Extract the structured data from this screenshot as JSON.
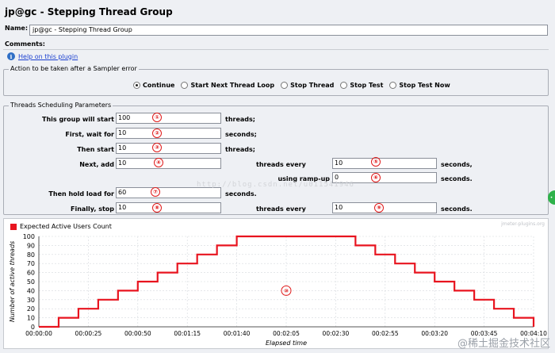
{
  "window": {
    "title": "jp@gc - Stepping Thread Group"
  },
  "name_field": {
    "label": "Name:",
    "value": "jp@gc - Stepping Thread Group"
  },
  "comments": {
    "label": "Comments:"
  },
  "help": {
    "label": "Help on this plugin",
    "icon": "info-icon"
  },
  "sampler_error": {
    "title": "Action to be taken after a Sampler error",
    "options": [
      "Continue",
      "Start Next Thread Loop",
      "Stop Thread",
      "Stop Test",
      "Stop Test Now"
    ],
    "selected": "Continue"
  },
  "schedule": {
    "title": "Threads Scheduling Parameters",
    "this_group_will_start": {
      "label": "This group will start",
      "value": "100",
      "unit": "threads;",
      "badge": "①"
    },
    "first_wait_for": {
      "label": "First, wait for",
      "value": "10",
      "unit": "seconds;",
      "badge": "②"
    },
    "then_start": {
      "label": "Then start",
      "value": "10",
      "unit": "threads;",
      "badge": "③"
    },
    "next_add": {
      "label": "Next, add",
      "value": "10",
      "badge": "④"
    },
    "threads_every_1": {
      "label": "threads every",
      "value": "10",
      "unit": "seconds,",
      "badge": "⑤"
    },
    "using_rampup": {
      "label": "using ramp-up",
      "value": "0",
      "unit": "seconds.",
      "badge": "⑥"
    },
    "hold_load": {
      "label": "Then hold load for",
      "value": "60",
      "unit": "seconds.",
      "badge": "⑦"
    },
    "finally_stop": {
      "label": "Finally, stop",
      "value": "10",
      "badge": "⑧"
    },
    "threads_every_2": {
      "label": "threads every",
      "value": "10",
      "unit": "seconds.",
      "badge": "⑨"
    }
  },
  "chart_data": {
    "type": "line",
    "legend": "Expected Active Users Count",
    "ylabel": "Number of active threads",
    "xlabel": "Elapsed time",
    "ylim": [
      0,
      100
    ],
    "yticks": [
      0,
      10,
      20,
      30,
      40,
      50,
      60,
      70,
      80,
      90,
      100
    ],
    "xticks": [
      "00:00:00",
      "00:00:25",
      "00:00:50",
      "00:01:15",
      "00:01:40",
      "00:02:05",
      "00:02:30",
      "00:02:55",
      "00:03:20",
      "00:03:45",
      "00:04:10"
    ],
    "xlim_seconds": [
      0,
      250
    ],
    "color": "#e8141f",
    "series": [
      {
        "x": [
          0,
          10,
          10,
          20,
          20,
          30,
          30,
          40,
          40,
          50,
          50,
          60,
          60,
          70,
          70,
          80,
          80,
          90,
          90,
          100,
          100,
          160,
          160,
          170,
          170,
          180,
          180,
          190,
          190,
          200,
          200,
          210,
          210,
          220,
          220,
          230,
          230,
          240,
          240,
          250,
          250
        ],
        "values": [
          0,
          0,
          10,
          10,
          20,
          20,
          30,
          30,
          40,
          40,
          50,
          50,
          60,
          60,
          70,
          70,
          80,
          80,
          90,
          90,
          100,
          100,
          90,
          90,
          80,
          80,
          70,
          70,
          60,
          60,
          50,
          50,
          40,
          40,
          30,
          30,
          20,
          20,
          10,
          10,
          0
        ]
      }
    ],
    "annotation": "⑩",
    "watermark": "jmeter-plugins.org"
  },
  "overlay": {
    "url_watermark": "http://blog.csdn.net/u011541946",
    "corner_watermark": "@稀土掘金技术社区"
  }
}
